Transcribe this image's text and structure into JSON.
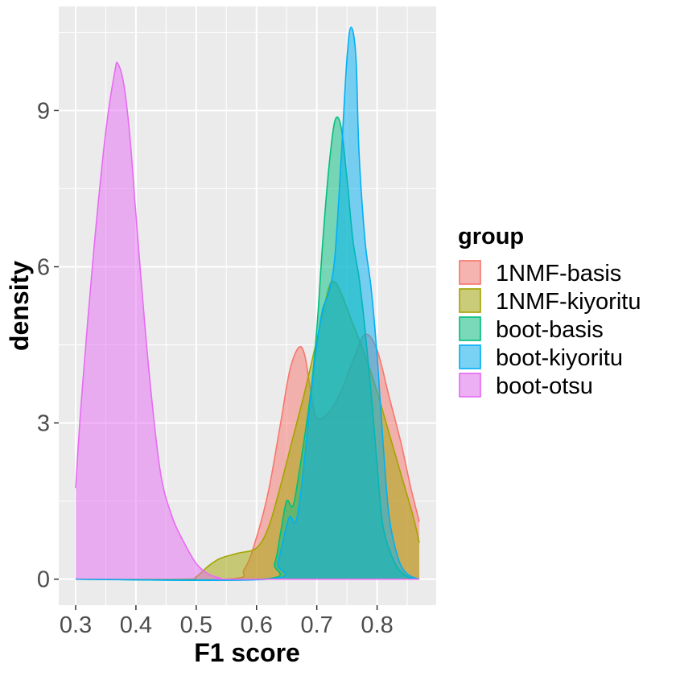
{
  "chart_data": {
    "type": "area",
    "subtype": "density",
    "xlabel": "F1 score",
    "ylabel": "density",
    "xlim": [
      0.272,
      0.898
    ],
    "ylim": [
      -0.5,
      11.0
    ],
    "x_ticks": [
      0.3,
      0.4,
      0.5,
      0.6,
      0.7,
      0.8
    ],
    "x_tick_labels": [
      "0.3",
      "0.4",
      "0.5",
      "0.6",
      "0.7",
      "0.8"
    ],
    "y_ticks": [
      0,
      3,
      6,
      9
    ],
    "y_tick_labels": [
      "0",
      "3",
      "6",
      "9"
    ],
    "grid": true,
    "legend": {
      "title": "group",
      "position": "right"
    },
    "series": [
      {
        "name": "1NMF-basis",
        "color": "#F8766D",
        "points": [
          [
            0.3,
            0
          ],
          [
            0.55,
            0
          ],
          [
            0.58,
            0.2
          ],
          [
            0.6,
            0.8
          ],
          [
            0.62,
            1.7
          ],
          [
            0.64,
            3.0
          ],
          [
            0.655,
            4.0
          ],
          [
            0.67,
            4.45
          ],
          [
            0.68,
            4.3
          ],
          [
            0.69,
            3.6
          ],
          [
            0.7,
            3.1
          ],
          [
            0.72,
            3.2
          ],
          [
            0.74,
            3.6
          ],
          [
            0.76,
            4.2
          ],
          [
            0.78,
            4.7
          ],
          [
            0.8,
            4.4
          ],
          [
            0.82,
            3.5
          ],
          [
            0.84,
            2.6
          ],
          [
            0.855,
            1.8
          ],
          [
            0.87,
            1.1
          ]
        ]
      },
      {
        "name": "1NMF-kiyoritu",
        "color": "#A3A500",
        "points": [
          [
            0.3,
            0
          ],
          [
            0.48,
            0
          ],
          [
            0.5,
            0.05
          ],
          [
            0.52,
            0.25
          ],
          [
            0.54,
            0.4
          ],
          [
            0.57,
            0.5
          ],
          [
            0.6,
            0.6
          ],
          [
            0.62,
            1.0
          ],
          [
            0.64,
            1.8
          ],
          [
            0.66,
            2.7
          ],
          [
            0.68,
            3.6
          ],
          [
            0.7,
            4.6
          ],
          [
            0.72,
            5.6
          ],
          [
            0.73,
            5.7
          ],
          [
            0.74,
            5.5
          ],
          [
            0.76,
            4.9
          ],
          [
            0.78,
            4.3
          ],
          [
            0.8,
            3.6
          ],
          [
            0.82,
            2.8
          ],
          [
            0.84,
            2.0
          ],
          [
            0.86,
            1.2
          ],
          [
            0.87,
            0.7
          ]
        ]
      },
      {
        "name": "boot-basis",
        "color": "#00BF7D",
        "points": [
          [
            0.3,
            0
          ],
          [
            0.61,
            0
          ],
          [
            0.63,
            0.3
          ],
          [
            0.64,
            0.9
          ],
          [
            0.65,
            1.5
          ],
          [
            0.66,
            1.4
          ],
          [
            0.67,
            2.0
          ],
          [
            0.69,
            3.6
          ],
          [
            0.7,
            4.8
          ],
          [
            0.71,
            6.5
          ],
          [
            0.72,
            7.9
          ],
          [
            0.73,
            8.8
          ],
          [
            0.74,
            8.7
          ],
          [
            0.75,
            7.7
          ],
          [
            0.76,
            6.5
          ],
          [
            0.77,
            5.8
          ],
          [
            0.78,
            4.8
          ],
          [
            0.79,
            3.6
          ],
          [
            0.8,
            2.2
          ],
          [
            0.81,
            1.0
          ],
          [
            0.83,
            0.3
          ],
          [
            0.85,
            0.05
          ],
          [
            0.87,
            0
          ]
        ]
      },
      {
        "name": "boot-kiyoritu",
        "color": "#00B0F6",
        "points": [
          [
            0.3,
            0
          ],
          [
            0.62,
            0
          ],
          [
            0.635,
            0.3
          ],
          [
            0.645,
            0.8
          ],
          [
            0.655,
            1.2
          ],
          [
            0.665,
            1.1
          ],
          [
            0.675,
            1.8
          ],
          [
            0.69,
            3.5
          ],
          [
            0.7,
            4.5
          ],
          [
            0.71,
            5.2
          ],
          [
            0.72,
            5.5
          ],
          [
            0.73,
            6.2
          ],
          [
            0.74,
            8.0
          ],
          [
            0.75,
            10.0
          ],
          [
            0.757,
            10.6
          ],
          [
            0.765,
            10.0
          ],
          [
            0.77,
            8.2
          ],
          [
            0.78,
            6.5
          ],
          [
            0.79,
            5.6
          ],
          [
            0.8,
            4.3
          ],
          [
            0.81,
            2.6
          ],
          [
            0.82,
            1.2
          ],
          [
            0.835,
            0.4
          ],
          [
            0.85,
            0.1
          ],
          [
            0.87,
            0
          ]
        ]
      },
      {
        "name": "boot-otsu",
        "color": "#E76BF3",
        "points": [
          [
            0.3,
            1.75
          ],
          [
            0.31,
            3.5
          ],
          [
            0.33,
            6.3
          ],
          [
            0.35,
            8.6
          ],
          [
            0.365,
            9.75
          ],
          [
            0.37,
            9.9
          ],
          [
            0.38,
            9.5
          ],
          [
            0.39,
            8.5
          ],
          [
            0.4,
            7.0
          ],
          [
            0.42,
            4.2
          ],
          [
            0.44,
            2.1
          ],
          [
            0.46,
            1.2
          ],
          [
            0.48,
            0.7
          ],
          [
            0.5,
            0.3
          ],
          [
            0.52,
            0.1
          ],
          [
            0.54,
            0.02
          ],
          [
            0.56,
            0
          ],
          [
            0.87,
            0
          ]
        ]
      }
    ]
  }
}
